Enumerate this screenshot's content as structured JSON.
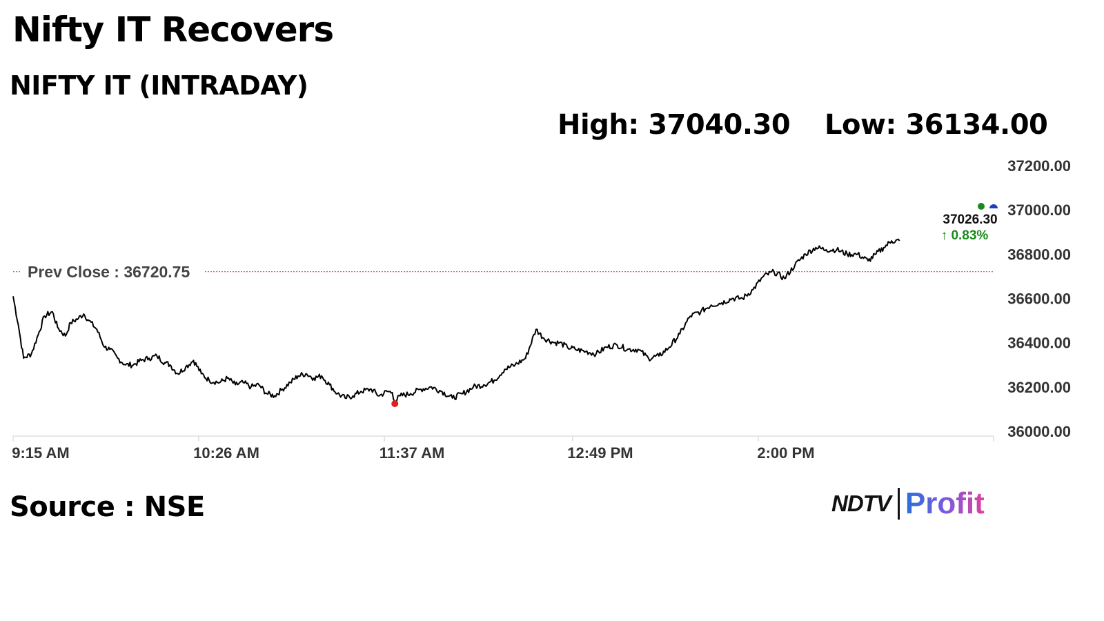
{
  "header": {
    "title": "Nifty IT Recovers",
    "subtitle": "NIFTY IT (INTRADAY)",
    "high_text": "High: 37040.30",
    "low_text": "Low: 36134.00"
  },
  "footer": {
    "source": "Source : NSE",
    "logo_left": "NDTV",
    "logo_right": "Profit"
  },
  "colors": {
    "line": "#000000",
    "prev_close": "#d23030",
    "low_marker": "#e02020",
    "up": "#1a8a1a",
    "axis": "#dddddd",
    "tick_text": "#333333"
  },
  "chart_data": {
    "type": "line",
    "title": "NIFTY IT (INTRADAY)",
    "xlabel": "",
    "ylabel": "",
    "ylim": [
      36000,
      37200
    ],
    "y_ticks": [
      "36000.00",
      "36200.00",
      "36400.00",
      "36600.00",
      "36800.00",
      "37000.00",
      "37200.00"
    ],
    "x_ticks": [
      "9:15 AM",
      "10:26 AM",
      "11:37 AM",
      "12:49 PM",
      "2:00 PM"
    ],
    "x_tick_minutes": [
      555,
      626,
      697,
      769,
      840
    ],
    "grid": false,
    "prev_close": 36720.75,
    "prev_close_label": "Prev Close : 36720.75",
    "last_value_label": "37026.30",
    "change_label": "↑ 0.83%",
    "low_point": {
      "time": "11:41 AM",
      "minute": 701,
      "value": 36134.0
    },
    "series": [
      {
        "name": "",
        "x_minutes": [
          555,
          557,
          559,
          562,
          565,
          567,
          570,
          572,
          575,
          577,
          580,
          582,
          584,
          587,
          590,
          592,
          595,
          598,
          601,
          604,
          607,
          610,
          613,
          615,
          618,
          621,
          624,
          627,
          630,
          634,
          637,
          640,
          643,
          646,
          649,
          652,
          655,
          658,
          661,
          664,
          667,
          670,
          673,
          676,
          679,
          682,
          685,
          688,
          692,
          695,
          698,
          700,
          701,
          703,
          707,
          711,
          715,
          719,
          723,
          727,
          731,
          735,
          739,
          743,
          747,
          751,
          755,
          758,
          762,
          764,
          767,
          770,
          774,
          778,
          782,
          786,
          790,
          794,
          798,
          802,
          806,
          810,
          814,
          818,
          822,
          826,
          830,
          834,
          838,
          842,
          846,
          850,
          854,
          858,
          862,
          866,
          870,
          874,
          878,
          882,
          885,
          888,
          891,
          894
        ],
        "values": [
          36610,
          36480,
          36330,
          36350,
          36450,
          36520,
          36540,
          36470,
          36430,
          36490,
          36510,
          36530,
          36500,
          36460,
          36380,
          36370,
          36330,
          36300,
          36300,
          36320,
          36330,
          36340,
          36310,
          36300,
          36260,
          36290,
          36320,
          36260,
          36230,
          36220,
          36240,
          36210,
          36220,
          36200,
          36210,
          36170,
          36160,
          36190,
          36220,
          36250,
          36260,
          36240,
          36250,
          36210,
          36170,
          36150,
          36160,
          36180,
          36190,
          36160,
          36180,
          36175,
          36134,
          36160,
          36170,
          36190,
          36200,
          36180,
          36150,
          36170,
          36200,
          36210,
          36230,
          36280,
          36300,
          36330,
          36460,
          36420,
          36400,
          36400,
          36380,
          36370,
          36360,
          36350,
          36380,
          36390,
          36370,
          36370,
          36330,
          36340,
          36380,
          36440,
          36520,
          36540,
          36570,
          36580,
          36600,
          36600,
          36640,
          36700,
          36720,
          36690,
          36750,
          36800,
          36830,
          36820,
          36820,
          36800,
          36800,
          36770,
          36800,
          36830,
          36860,
          36860
        ]
      }
    ]
  }
}
